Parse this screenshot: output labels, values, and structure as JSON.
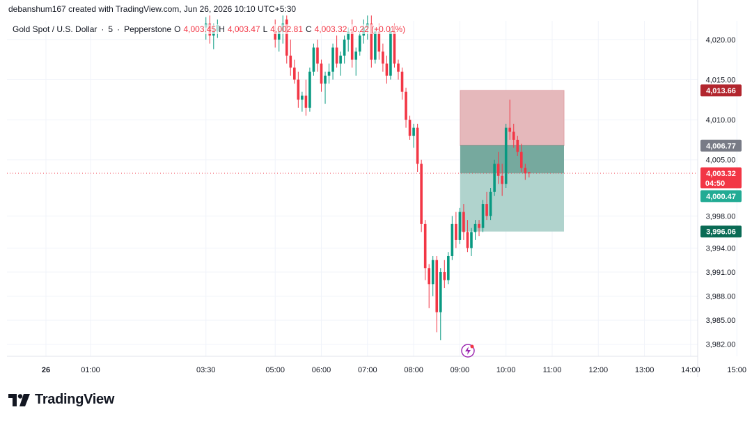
{
  "header": {
    "created_by": "debanshum167 created with TradingView.com, Jun 26, 2026 10:10 UTC+5:30"
  },
  "legend": {
    "symbol": "Gold Spot / U.S. Dollar",
    "interval": "5",
    "broker": "Pepperstone",
    "open_label": "O",
    "open": "4,003.45",
    "high_label": "H",
    "high": "4,003.47",
    "low_label": "L",
    "low": "4,002.81",
    "close_label": "C",
    "close": "4,003.32",
    "change": "-0.22 (+0.01%)"
  },
  "brand": {
    "name": "TradingView"
  },
  "colors": {
    "up": "#089981",
    "down": "#f23645",
    "stop_zone": "#e5b8bb",
    "target_zone": "#b0d3cd",
    "entry_overlap": "#76a99e",
    "tag_stop": "#b2262e",
    "tag_entry": "#787b86",
    "tag_price": "#f23645",
    "tag_target": "#22ab94",
    "tag_target_dark": "#0a6b55"
  },
  "chart_data": {
    "type": "candlestick",
    "symbol": "Gold Spot / U.S. Dollar",
    "timeframe": "5",
    "ylim": [
      3980.5,
      4023.2
    ],
    "y_ticks": [
      "3,982.00",
      "3,985.00",
      "3,988.00",
      "3,991.00",
      "3,994.00",
      "3,998.00",
      "4,005.00",
      "4,010.00",
      "4,015.00",
      "4,020.00"
    ],
    "x_ticks": [
      "26",
      "01:00",
      "03:30",
      "05:00",
      "06:00",
      "07:00",
      "08:00",
      "09:00",
      "10:00",
      "11:00",
      "12:00",
      "13:00",
      "14:00",
      "15:00"
    ],
    "last_price": "4,003.32",
    "countdown": "04:50",
    "position": {
      "side": "short",
      "stop": "4,013.66",
      "entry": "4,006.77",
      "target_1": "4,000.47",
      "target_2": "3,996.06"
    },
    "candles_note": "approximate OHLC read from the chart, 5-minute bars",
    "candles": [
      [
        "03:30",
        4021.5,
        4022.8,
        4020.0,
        4022.0
      ],
      [
        "03:35",
        4022.0,
        4023.0,
        4019.5,
        4020.5
      ],
      [
        "03:40",
        4020.5,
        4022.0,
        4018.8,
        4021.0
      ],
      [
        "03:45",
        4021.0,
        4022.5,
        4020.2,
        4021.8
      ],
      [
        "05:00",
        4021.0,
        4022.5,
        4019.0,
        4020.0
      ],
      [
        "05:05",
        4020.0,
        4021.5,
        4018.5,
        4021.0
      ],
      [
        "05:10",
        4021.0,
        4023.0,
        4019.5,
        4022.0
      ],
      [
        "05:15",
        4022.5,
        4023.0,
        4017.0,
        4018.0
      ],
      [
        "05:20",
        4018.0,
        4020.0,
        4015.5,
        4016.5
      ],
      [
        "05:25",
        4016.5,
        4017.5,
        4014.5,
        4015.0
      ],
      [
        "05:30",
        4015.0,
        4016.0,
        4011.5,
        4012.5
      ],
      [
        "05:35",
        4012.5,
        4013.5,
        4011.0,
        4013.0
      ],
      [
        "05:40",
        4013.0,
        4015.0,
        4010.5,
        4011.5
      ],
      [
        "05:45",
        4011.5,
        4016.5,
        4011.0,
        4016.0
      ],
      [
        "05:50",
        4016.0,
        4019.5,
        4015.5,
        4019.0
      ],
      [
        "05:55",
        4019.0,
        4020.0,
        4016.0,
        4017.0
      ],
      [
        "06:00",
        4017.0,
        4017.5,
        4013.5,
        4014.5
      ],
      [
        "06:05",
        4014.5,
        4016.0,
        4012.0,
        4015.5
      ],
      [
        "06:10",
        4015.5,
        4017.0,
        4014.5,
        4016.0
      ],
      [
        "06:15",
        4016.0,
        4019.5,
        4015.0,
        4019.0
      ],
      [
        "06:20",
        4019.0,
        4020.5,
        4016.5,
        4017.0
      ],
      [
        "06:25",
        4017.0,
        4018.5,
        4015.5,
        4018.0
      ],
      [
        "06:30",
        4018.0,
        4020.5,
        4017.0,
        4020.0
      ],
      [
        "06:35",
        4020.0,
        4021.5,
        4018.5,
        4021.0
      ],
      [
        "06:40",
        4021.0,
        4022.5,
        4016.5,
        4017.5
      ],
      [
        "06:45",
        4017.5,
        4019.0,
        4015.5,
        4018.5
      ],
      [
        "06:50",
        4018.5,
        4021.0,
        4018.0,
        4020.5
      ],
      [
        "06:55",
        4020.5,
        4022.5,
        4019.5,
        4021.5
      ],
      [
        "07:00",
        4021.5,
        4023.0,
        4020.0,
        4022.0
      ],
      [
        "07:05",
        4022.0,
        4023.0,
        4016.5,
        4017.5
      ],
      [
        "07:10",
        4017.5,
        4021.5,
        4017.0,
        4021.0
      ],
      [
        "07:15",
        4021.0,
        4022.0,
        4017.5,
        4018.5
      ],
      [
        "07:20",
        4018.5,
        4019.5,
        4016.0,
        4017.0
      ],
      [
        "07:25",
        4017.0,
        4018.0,
        4014.5,
        4015.5
      ],
      [
        "07:30",
        4015.5,
        4021.5,
        4015.0,
        4021.0
      ],
      [
        "07:35",
        4021.0,
        4022.0,
        4016.5,
        4017.0
      ],
      [
        "07:40",
        4017.0,
        4017.5,
        4015.0,
        4016.0
      ],
      [
        "07:45",
        4016.0,
        4016.5,
        4012.5,
        4013.5
      ],
      [
        "07:50",
        4013.5,
        4014.0,
        4009.0,
        4010.0
      ],
      [
        "07:55",
        4010.0,
        4010.5,
        4007.5,
        4008.0
      ],
      [
        "08:00",
        4008.0,
        4009.5,
        4006.5,
        4009.0
      ],
      [
        "08:05",
        4009.0,
        4009.5,
        4003.5,
        4004.5
      ],
      [
        "08:10",
        4004.5,
        4005.0,
        3996.0,
        3997.0
      ],
      [
        "08:15",
        3997.0,
        3997.5,
        3990.0,
        3991.5
      ],
      [
        "08:20",
        3991.5,
        3992.0,
        3986.5,
        3989.5
      ],
      [
        "08:25",
        3989.5,
        3993.0,
        3988.0,
        3992.5
      ],
      [
        "08:30",
        3992.5,
        3993.0,
        3983.5,
        3986.0
      ],
      [
        "08:35",
        3986.0,
        3991.5,
        3982.5,
        3991.0
      ],
      [
        "08:40",
        3991.0,
        3992.5,
        3989.0,
        3990.0
      ],
      [
        "08:45",
        3990.0,
        3993.5,
        3989.5,
        3993.0
      ],
      [
        "08:50",
        3993.0,
        3998.0,
        3992.5,
        3997.0
      ],
      [
        "08:55",
        3997.0,
        3998.5,
        3994.0,
        3995.0
      ],
      [
        "09:00",
        3995.0,
        3999.0,
        3994.5,
        3998.5
      ],
      [
        "09:05",
        3998.5,
        3999.5,
        3995.0,
        3996.0
      ],
      [
        "09:10",
        3996.0,
        3997.5,
        3993.5,
        3994.0
      ],
      [
        "09:15",
        3994.0,
        3996.5,
        3993.0,
        3996.0
      ],
      [
        "09:20",
        3996.0,
        3997.5,
        3995.0,
        3997.0
      ],
      [
        "09:25",
        3997.0,
        3997.5,
        3995.5,
        3996.5
      ],
      [
        "09:30",
        3996.5,
        4000.0,
        3996.0,
        3999.5
      ],
      [
        "09:35",
        3999.5,
        4001.0,
        3997.5,
        3998.0
      ],
      [
        "09:40",
        3998.0,
        4001.5,
        3997.5,
        4001.0
      ],
      [
        "09:45",
        4001.0,
        4005.0,
        4000.5,
        4004.5
      ],
      [
        "09:50",
        4004.5,
        4006.0,
        4002.0,
        4003.0
      ],
      [
        "09:55",
        4003.0,
        4004.5,
        4000.5,
        4002.0
      ],
      [
        "10:00",
        4002.0,
        4009.5,
        4001.5,
        4009.0
      ],
      [
        "10:05",
        4009.0,
        4012.5,
        4007.5,
        4008.5
      ],
      [
        "10:10",
        4008.5,
        4009.5,
        4006.5,
        4007.5
      ],
      [
        "10:15",
        4007.5,
        4008.0,
        4005.5,
        4006.0
      ],
      [
        "10:20",
        4006.0,
        4007.0,
        4003.5,
        4004.0
      ],
      [
        "10:25",
        4004.0,
        4004.5,
        4002.5,
        4003.3
      ],
      [
        "10:30",
        4003.45,
        4003.47,
        4002.81,
        4003.32
      ]
    ]
  }
}
